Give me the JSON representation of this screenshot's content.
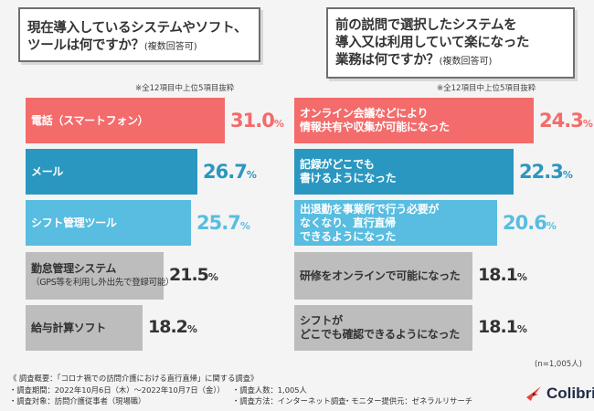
{
  "left_question": {
    "line1": "現在導入しているシステムやソフト、",
    "line2": "ツールは何ですか？",
    "note": "(複数回答可)"
  },
  "right_question": {
    "line1": "前の説問で選択したシステムを",
    "line2": "導入又は利用していて楽になった",
    "line3": "業務は何ですか？",
    "note": "(複数回答可)"
  },
  "extract_note": "※全12項目中上位5項目抜粋",
  "sample_note": "(n=1,005人)",
  "chart_data": [
    {
      "type": "bar",
      "orientation": "horizontal",
      "categories": [
        "電話（スマートフォン）",
        "メール",
        "シフト管理ツール",
        "勤怠管理システム（GPS等を利用し外出先で登録可能）",
        "給与計算ソフト"
      ],
      "label_lines": [
        [
          "電話（スマートフォン）"
        ],
        [
          "メール"
        ],
        [
          "シフト管理ツール"
        ],
        [
          "勤怠管理システム",
          "（GPS等を利用し外出先で登録可能）"
        ],
        [
          "給与計算ソフト"
        ]
      ],
      "values": [
        31.0,
        26.7,
        25.7,
        21.5,
        18.2
      ],
      "value_labels": [
        "31.0",
        "26.7",
        "25.7",
        "21.5",
        "18.2"
      ],
      "unit": "%",
      "colors": [
        "#f36b6b",
        "#2a97c0",
        "#58bde0",
        "#bdbdbd",
        "#bdbdbd"
      ],
      "xlim": [
        0,
        31.0
      ]
    },
    {
      "type": "bar",
      "orientation": "horizontal",
      "categories": [
        "オンライン会議などにより情報共有や収集が可能になった",
        "記録がどこでも書けるようになった",
        "出退勤を事業所で行う必要がなくなり、直行直帰できるようになった",
        "研修をオンラインで可能になった",
        "シフトがどこでも確認できるようになった"
      ],
      "label_lines": [
        [
          "オンライン会議などにより",
          "情報共有や収集が可能になった"
        ],
        [
          "記録がどこでも",
          "書けるようになった"
        ],
        [
          "出退勤を事業所で行う必要が",
          "なくなり、直行直帰",
          "できるようになった"
        ],
        [
          "研修をオンラインで可能になった"
        ],
        [
          "シフトが",
          "どこでも確認できるようになった"
        ]
      ],
      "values": [
        24.3,
        22.3,
        20.6,
        18.1,
        18.1
      ],
      "value_labels": [
        "24.3",
        "22.3",
        "20.6",
        "18.1",
        "18.1"
      ],
      "unit": "%",
      "colors": [
        "#f36b6b",
        "#2a97c0",
        "#58bde0",
        "#bdbdbd",
        "#bdbdbd"
      ],
      "xlim": [
        0,
        24.3
      ]
    }
  ],
  "footer": {
    "title": "《 調査概要：「コロナ禍での訪問介護における直行直帰」に関する調査》",
    "period": "・調査期間：2022年10月6日（木）～2022年10月7日（金））",
    "target": "・調査対象：訪問介護従事者（現場職）",
    "count": "・調査人数：1,005人",
    "method": "・調査方法：インターネット調査",
    "provider": "・モニター提供元：ゼネラルリサーチ"
  },
  "brand": {
    "name": "Colibri",
    "icon": "hummingbird-icon"
  }
}
